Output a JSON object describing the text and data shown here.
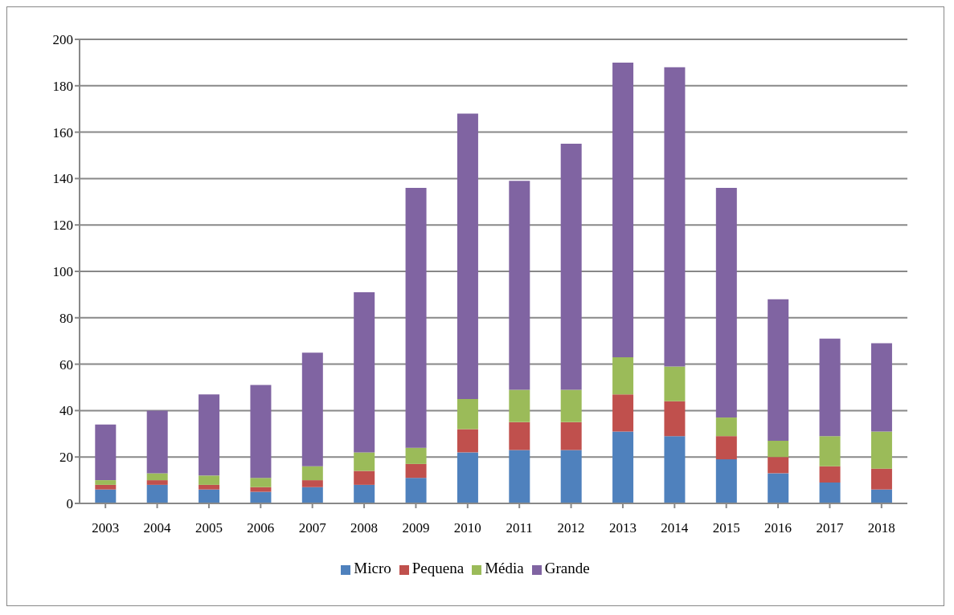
{
  "chart_data": {
    "type": "bar",
    "stacked": true,
    "categories": [
      "2003",
      "2004",
      "2005",
      "2006",
      "2007",
      "2008",
      "2009",
      "2010",
      "2011",
      "2012",
      "2013",
      "2014",
      "2015",
      "2016",
      "2017",
      "2018"
    ],
    "series": [
      {
        "name": "Micro",
        "color": "#4f81bd",
        "values": [
          6,
          8,
          6,
          5,
          7,
          8,
          11,
          22,
          23,
          23,
          31,
          29,
          19,
          13,
          9,
          6
        ]
      },
      {
        "name": "Pequena",
        "color": "#c0504d",
        "values": [
          2,
          2,
          2,
          2,
          3,
          6,
          6,
          10,
          12,
          12,
          16,
          15,
          10,
          7,
          7,
          9
        ]
      },
      {
        "name": "Média",
        "color": "#9bbb59",
        "values": [
          2,
          3,
          4,
          4,
          6,
          8,
          7,
          13,
          14,
          14,
          16,
          15,
          8,
          7,
          13,
          16
        ]
      },
      {
        "name": "Grande",
        "color": "#8064a2",
        "values": [
          24,
          27,
          35,
          40,
          49,
          69,
          112,
          123,
          90,
          106,
          127,
          129,
          99,
          61,
          42,
          38
        ]
      }
    ],
    "ylim": [
      0,
      200
    ],
    "yticks": [
      0,
      20,
      40,
      60,
      80,
      100,
      120,
      140,
      160,
      180,
      200
    ],
    "grid": "y",
    "legend": "bottom"
  }
}
